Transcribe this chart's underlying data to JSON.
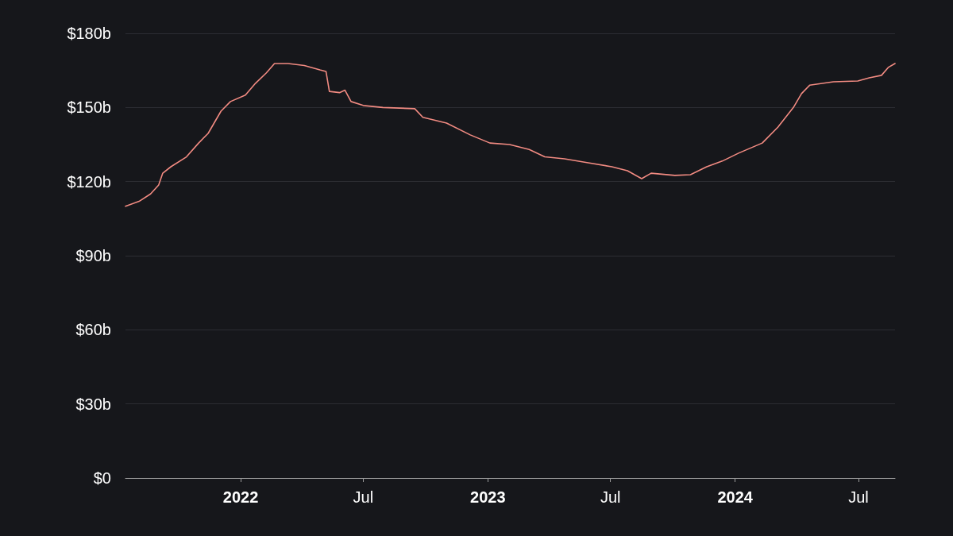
{
  "chart_data": {
    "type": "line",
    "x": [
      "2021-07-15",
      "2021-08-04",
      "2021-08-21",
      "2021-09-02",
      "2021-09-08",
      "2021-09-20",
      "2021-10-13",
      "2021-10-31",
      "2021-11-14",
      "2021-12-03",
      "2021-12-17",
      "2022-01-08",
      "2022-01-23",
      "2022-02-08",
      "2022-02-20",
      "2022-03-12",
      "2022-04-05",
      "2022-04-28",
      "2022-05-07",
      "2022-05-12",
      "2022-05-27",
      "2022-06-04",
      "2022-06-13",
      "2022-07-01",
      "2022-07-30",
      "2022-09-15",
      "2022-09-27",
      "2022-11-01",
      "2022-12-06",
      "2023-01-04",
      "2023-02-02",
      "2023-03-03",
      "2023-03-26",
      "2023-04-24",
      "2023-05-29",
      "2023-07-03",
      "2023-07-26",
      "2023-08-16",
      "2023-08-30",
      "2023-10-04",
      "2023-10-27",
      "2023-11-20",
      "2023-12-13",
      "2024-01-06",
      "2024-02-10",
      "2024-03-04",
      "2024-03-27",
      "2024-04-08",
      "2024-04-20",
      "2024-05-25",
      "2024-06-30",
      "2024-07-17",
      "2024-08-04",
      "2024-08-14",
      "2024-08-24"
    ],
    "series": [
      {
        "color": "#f28b82",
        "values": [
          110,
          112,
          115,
          118.6,
          123.4,
          126,
          130,
          135.6,
          139.5,
          148.5,
          152.4,
          155,
          159.8,
          164,
          167.8,
          167.8,
          167,
          165.2,
          164.6,
          156.5,
          156,
          157,
          152.4,
          150.8,
          150,
          149.5,
          146,
          143.7,
          138.9,
          135.6,
          135,
          133,
          130,
          129.2,
          127.6,
          126,
          124.4,
          121.2,
          123.4,
          122.5,
          122.8,
          126,
          128.3,
          131.5,
          135.6,
          142,
          150,
          155.6,
          159,
          160.4,
          160.7,
          162,
          163,
          166.2,
          167.8
        ]
      }
    ],
    "xlim": [
      "2021-07-15",
      "2024-08-24"
    ],
    "xticks": [
      {
        "value": "2022-01-01",
        "label": "2022"
      },
      {
        "value": "2022-07-01",
        "label": "Jul"
      },
      {
        "value": "2023-01-01",
        "label": "2023"
      },
      {
        "value": "2023-07-01",
        "label": "Jul"
      },
      {
        "value": "2024-01-01",
        "label": "2024"
      },
      {
        "value": "2024-07-01",
        "label": "Jul"
      }
    ],
    "ylim": [
      0,
      180
    ],
    "yticks": [
      {
        "value": 0,
        "label": "$0"
      },
      {
        "value": 30,
        "label": "$30b"
      },
      {
        "value": 60,
        "label": "$60b"
      },
      {
        "value": 90,
        "label": "$90b"
      },
      {
        "value": 120,
        "label": "$120b"
      },
      {
        "value": 150,
        "label": "$150b"
      },
      {
        "value": 180,
        "label": "$180b"
      }
    ],
    "grid": "y",
    "marker": "none",
    "line_style": "solid"
  }
}
